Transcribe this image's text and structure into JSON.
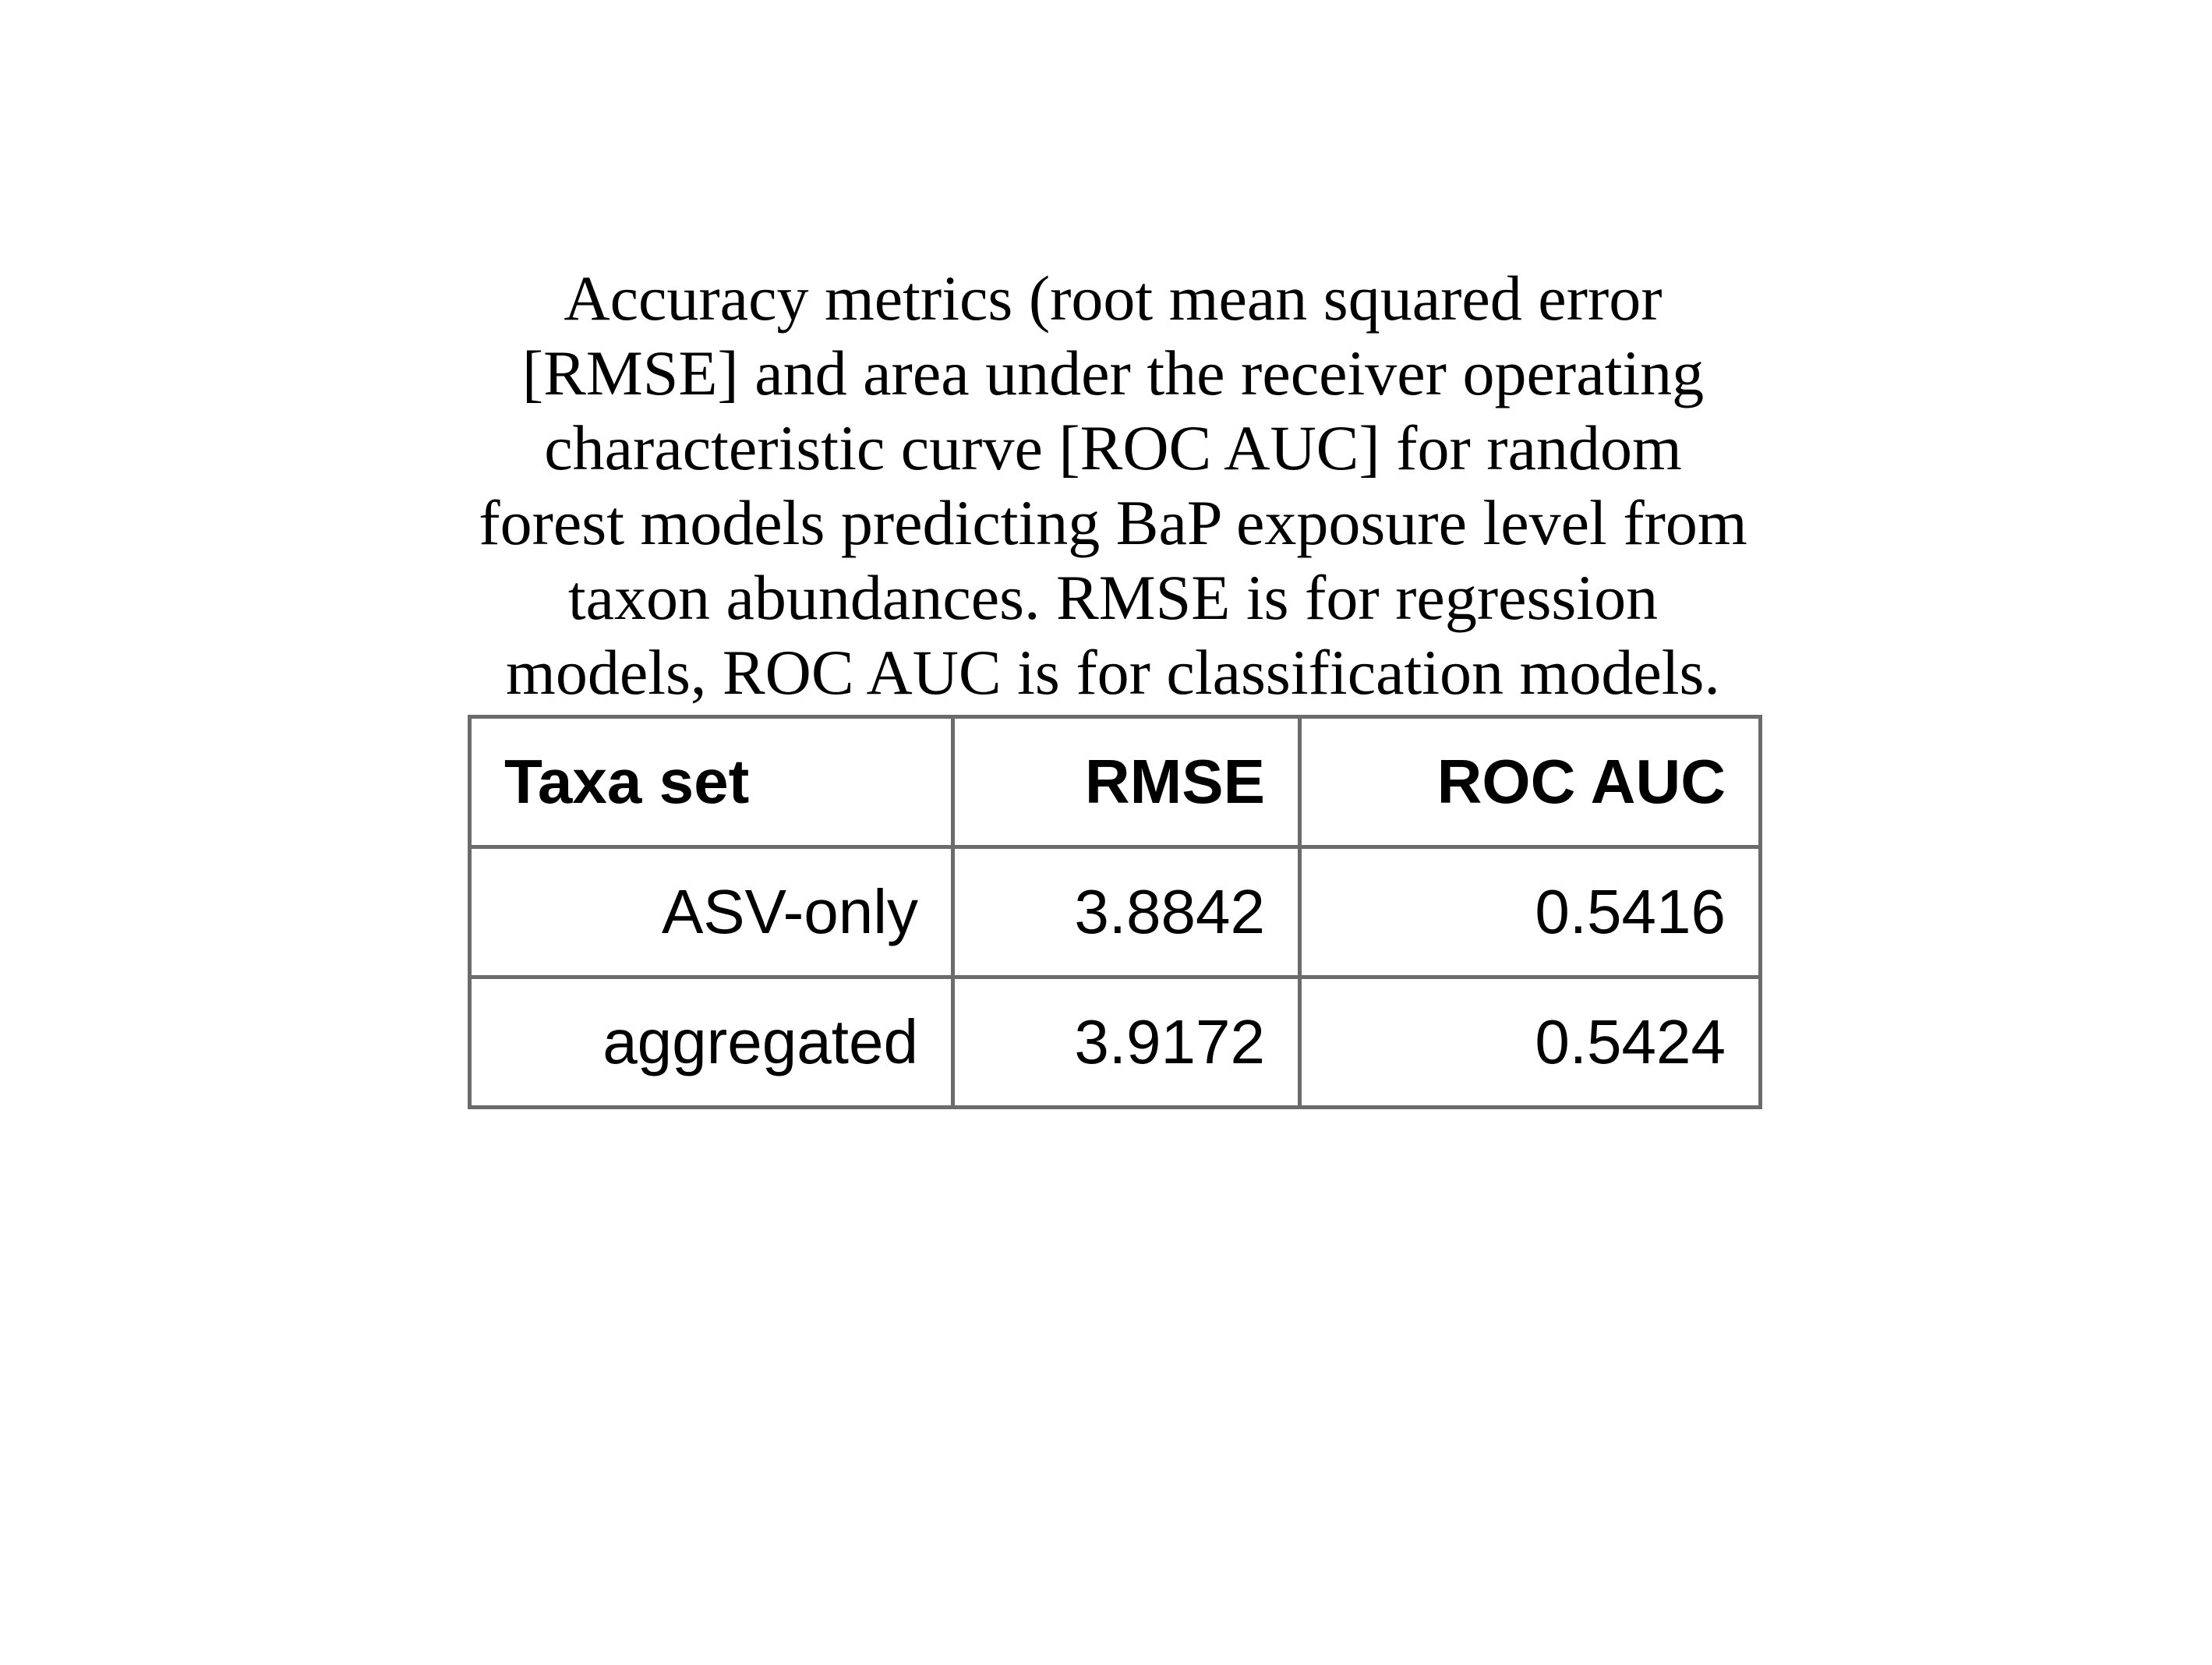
{
  "caption": "Accuracy metrics (root mean squared error [RMSE] and area under the receiver operating characteristic curve [ROC AUC] for random forest models predicting BaP exposure level from taxon abundances. RMSE is for regression models, ROC AUC is for classification models.",
  "table": {
    "headers": [
      "Taxa set",
      "RMSE",
      "ROC AUC"
    ],
    "rows": [
      [
        "ASV-only",
        "3.8842",
        "0.5416"
      ],
      [
        "aggregated",
        "3.9172",
        "0.5424"
      ]
    ]
  }
}
